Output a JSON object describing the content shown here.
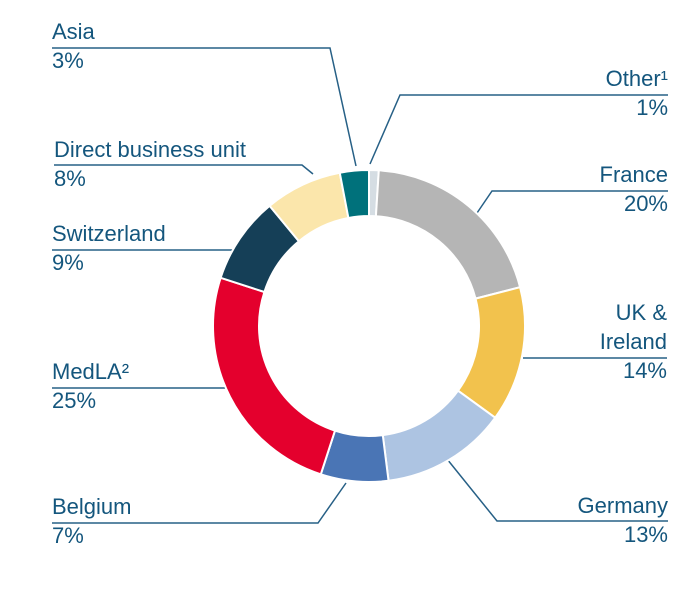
{
  "chart_data": {
    "type": "pie",
    "variant": "donut",
    "title": "",
    "unit": "%",
    "direction": "clockwise",
    "start_angle_deg": 0,
    "legend_position": "callout-labels",
    "segments": [
      {
        "label": "Other¹",
        "value": 1,
        "color": "#d5dde3"
      },
      {
        "label": "France",
        "value": 20,
        "color": "#b5b5b5"
      },
      {
        "label": "UK & Ireland",
        "value": 14,
        "color": "#f2c24d"
      },
      {
        "label": "Germany",
        "value": 13,
        "color": "#adc4e2"
      },
      {
        "label": "Belgium",
        "value": 7,
        "color": "#4a75b5"
      },
      {
        "label": "MedLA²",
        "value": 25,
        "color": "#e4002d"
      },
      {
        "label": "Switzerland",
        "value": 9,
        "color": "#153f57"
      },
      {
        "label": "Direct business unit",
        "value": 8,
        "color": "#fbe6ab"
      },
      {
        "label": "Asia",
        "value": 3,
        "color": "#00717b"
      }
    ]
  },
  "callouts": {
    "asia": {
      "title": "Asia",
      "pct": "3%"
    },
    "other": {
      "title": "Other¹",
      "pct": "1%"
    },
    "france": {
      "title": "France",
      "pct": "20%"
    },
    "uk_ireland": {
      "title_line1": "UK &",
      "title_line2": "Ireland",
      "pct": "14%"
    },
    "germany": {
      "title": "Germany",
      "pct": "13%"
    },
    "belgium": {
      "title": "Belgium",
      "pct": "7%"
    },
    "medla": {
      "title": "MedLA²",
      "pct": "25%"
    },
    "switzerland": {
      "title": "Switzerland",
      "pct": "9%"
    },
    "direct": {
      "title": "Direct business unit",
      "pct": "8%"
    }
  },
  "style": {
    "text_color": "#14567d",
    "leader_line_color": "#276086",
    "slice_gap_color": "#ffffff",
    "background": "#ffffff"
  }
}
